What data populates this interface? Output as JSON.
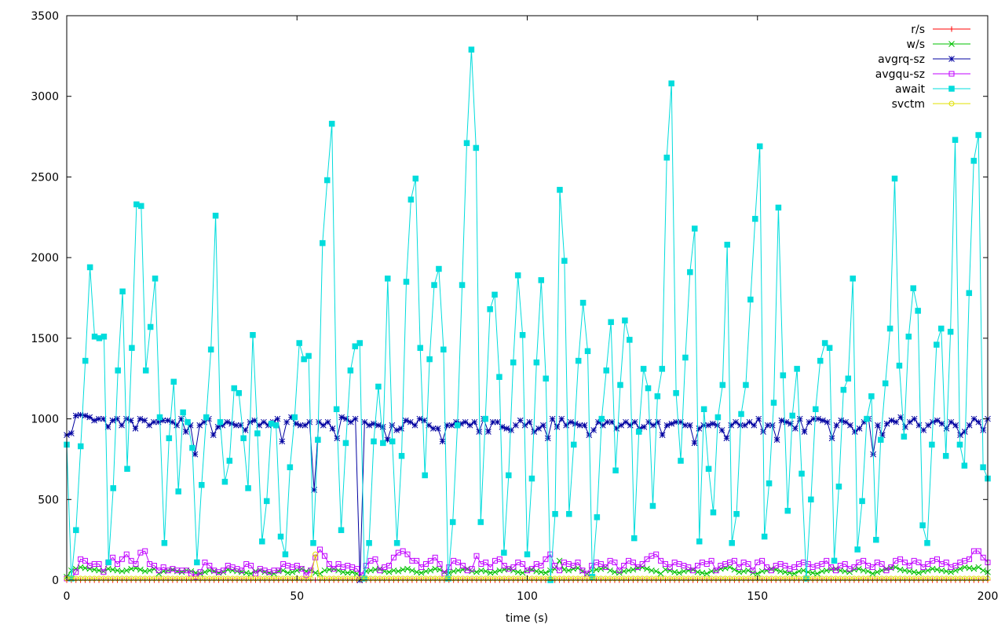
{
  "chart_data": {
    "type": "line",
    "title": "",
    "xlabel": "time (s)",
    "ylabel": "",
    "xlim": [
      0,
      200
    ],
    "ylim": [
      0,
      3500
    ],
    "xticks": [
      0,
      50,
      100,
      150,
      200
    ],
    "yticks": [
      0,
      500,
      1000,
      1500,
      2000,
      2500,
      3000,
      3500
    ],
    "grid": false,
    "legend_position": "top-right",
    "series": [
      {
        "name": "r/s",
        "color": "#ff0000",
        "marker": "plus",
        "values": [
          0,
          0,
          0,
          0,
          0,
          0,
          0,
          0,
          0,
          0,
          0,
          0,
          0,
          0,
          0,
          0,
          0,
          0,
          0,
          0,
          0,
          0,
          0,
          0,
          0,
          0,
          0,
          0,
          0,
          0,
          0,
          0,
          0,
          0,
          0,
          0,
          0,
          0,
          0,
          0,
          0,
          0,
          0,
          0,
          0,
          0,
          0,
          0,
          0,
          0,
          0,
          0,
          0,
          0,
          0,
          0,
          0,
          0,
          0,
          0,
          0,
          0,
          0,
          0,
          0,
          0,
          0,
          0,
          0,
          0,
          0,
          0,
          0,
          0,
          0,
          0,
          0,
          0,
          0,
          0,
          0,
          0,
          0,
          0,
          0,
          0,
          0,
          0,
          0,
          0,
          0,
          0,
          0,
          0,
          0,
          0,
          0,
          0,
          0,
          0,
          0,
          0,
          0,
          0,
          0,
          0,
          0,
          0,
          0,
          0,
          0,
          0,
          0,
          0,
          0,
          0,
          0,
          0,
          0,
          0,
          0,
          0,
          0,
          0,
          0,
          0,
          0,
          0,
          0,
          0,
          0,
          0,
          0,
          0,
          0,
          0,
          0,
          0,
          0,
          0,
          0,
          0,
          0,
          0,
          0,
          0,
          0,
          0,
          0,
          0,
          0,
          0,
          0,
          0,
          0,
          0,
          0,
          0,
          0,
          0,
          0,
          0,
          0,
          0,
          0,
          0,
          0,
          0,
          0,
          0,
          0,
          0,
          0,
          0,
          0,
          0,
          0,
          0,
          0,
          0,
          0,
          0,
          0,
          0,
          0,
          0,
          0,
          0,
          0,
          0,
          0,
          0,
          0,
          0,
          0,
          0,
          0,
          0,
          0,
          0,
          0
        ]
      },
      {
        "name": "w/s",
        "color": "#00c000",
        "marker": "cross",
        "values": [
          20,
          60,
          70,
          80,
          75,
          70,
          65,
          60,
          55,
          70,
          65,
          60,
          55,
          60,
          70,
          75,
          65,
          55,
          60,
          70,
          40,
          55,
          60,
          65,
          55,
          50,
          60,
          55,
          45,
          40,
          50,
          60,
          55,
          45,
          50,
          65,
          60,
          55,
          50,
          45,
          40,
          55,
          60,
          50,
          45,
          40,
          55,
          60,
          45,
          50,
          60,
          70,
          55,
          60,
          45,
          40,
          60,
          65,
          70,
          60,
          50,
          45,
          50,
          40,
          10,
          55,
          60,
          65,
          70,
          55,
          50,
          60,
          55,
          65,
          70,
          60,
          50,
          45,
          55,
          60,
          70,
          65,
          50,
          45,
          55,
          60,
          65,
          70,
          55,
          50,
          60,
          55,
          45,
          50,
          60,
          65,
          70,
          60,
          50,
          45,
          60,
          65,
          55,
          50,
          45,
          60,
          70,
          120,
          65,
          60,
          70,
          75,
          55,
          40,
          60,
          65,
          70,
          80,
          60,
          50,
          45,
          55,
          60,
          65,
          75,
          80,
          70,
          60,
          55,
          40,
          65,
          60,
          50,
          45,
          55,
          60,
          65,
          50,
          45,
          40,
          55,
          60,
          70,
          75,
          80,
          65,
          50,
          55,
          60,
          45,
          40,
          55,
          60,
          70,
          65,
          55,
          50,
          45,
          40,
          55,
          60,
          50,
          45,
          40,
          55,
          60,
          65,
          70,
          60,
          55,
          50,
          65,
          70,
          60,
          55,
          40,
          50,
          60,
          70,
          75,
          80,
          65,
          60,
          55,
          50,
          45,
          55,
          60,
          70,
          65,
          60,
          55,
          50,
          60,
          70,
          80,
          75,
          70,
          80,
          60,
          50
        ]
      },
      {
        "name": "avgrq-sz",
        "color": "#0000a0",
        "marker": "star",
        "values": [
          900,
          910,
          1020,
          1025,
          1020,
          1010,
          990,
          1000,
          1000,
          950,
          990,
          1000,
          960,
          1000,
          990,
          940,
          1000,
          990,
          960,
          980,
          980,
          990,
          990,
          980,
          960,
          1000,
          920,
          960,
          780,
          960,
          980,
          1000,
          900,
          950,
          960,
          980,
          970,
          960,
          960,
          930,
          980,
          990,
          960,
          980,
          960,
          980,
          1000,
          860,
          980,
          1010,
          970,
          960,
          960,
          980,
          560,
          980,
          960,
          980,
          940,
          880,
          1010,
          1000,
          980,
          1000,
          0,
          980,
          960,
          970,
          960,
          950,
          870,
          960,
          930,
          940,
          990,
          980,
          960,
          1000,
          990,
          960,
          940,
          940,
          860,
          960,
          960,
          980,
          970,
          980,
          960,
          980,
          920,
          1000,
          920,
          980,
          980,
          950,
          940,
          930,
          960,
          990,
          960,
          980,
          920,
          940,
          960,
          880,
          1000,
          950,
          1000,
          960,
          980,
          970,
          960,
          960,
          900,
          930,
          980,
          960,
          980,
          980,
          940,
          960,
          980,
          960,
          980,
          940,
          950,
          980,
          960,
          980,
          900,
          960,
          970,
          980,
          980,
          960,
          960,
          850,
          940,
          960,
          960,
          970,
          960,
          930,
          880,
          960,
          980,
          960,
          960,
          980,
          960,
          1000,
          920,
          960,
          960,
          870,
          990,
          980,
          970,
          940,
          1000,
          920,
          980,
          1000,
          1000,
          990,
          980,
          880,
          960,
          990,
          980,
          960,
          920,
          940,
          980,
          1000,
          780,
          960,
          900,
          970,
          990,
          980,
          1010,
          950,
          980,
          1000,
          960,
          930,
          960,
          980,
          990,
          970,
          940,
          980,
          960,
          900,
          920,
          960,
          1000,
          980,
          930,
          1000
        ]
      },
      {
        "name": "avgqu-sz",
        "color": "#c000ff",
        "marker": "square",
        "values": [
          10,
          10,
          50,
          130,
          120,
          90,
          100,
          100,
          50,
          110,
          140,
          100,
          130,
          160,
          120,
          100,
          170,
          180,
          100,
          90,
          60,
          80,
          60,
          70,
          60,
          60,
          60,
          40,
          20,
          50,
          110,
          90,
          60,
          50,
          60,
          90,
          80,
          70,
          60,
          100,
          90,
          40,
          70,
          60,
          50,
          60,
          60,
          100,
          90,
          80,
          90,
          70,
          30,
          60,
          140,
          190,
          150,
          100,
          70,
          100,
          80,
          90,
          80,
          70,
          30,
          90,
          120,
          130,
          60,
          80,
          90,
          140,
          170,
          180,
          160,
          120,
          120,
          80,
          100,
          120,
          140,
          100,
          40,
          80,
          120,
          110,
          90,
          60,
          70,
          150,
          100,
          110,
          80,
          120,
          130,
          90,
          70,
          80,
          110,
          100,
          60,
          70,
          100,
          90,
          130,
          160,
          90,
          60,
          110,
          100,
          90,
          110,
          60,
          40,
          90,
          110,
          100,
          80,
          120,
          110,
          60,
          90,
          120,
          110,
          80,
          100,
          130,
          150,
          160,
          120,
          100,
          80,
          110,
          100,
          90,
          80,
          60,
          90,
          110,
          100,
          120,
          60,
          90,
          100,
          110,
          120,
          80,
          110,
          100,
          60,
          110,
          120,
          80,
          60,
          90,
          100,
          90,
          70,
          80,
          100,
          110,
          100,
          80,
          90,
          100,
          120,
          80,
          60,
          90,
          100,
          70,
          80,
          110,
          120,
          90,
          80,
          110,
          100,
          60,
          80,
          120,
          130,
          110,
          90,
          120,
          110,
          80,
          100,
          120,
          130,
          100,
          110,
          80,
          90,
          110,
          120,
          130,
          180,
          180,
          140,
          110
        ]
      },
      {
        "name": "await",
        "color": "#00dcdc",
        "marker": "filled-square",
        "values": [
          840,
          10,
          310,
          830,
          1360,
          1940,
          1510,
          1500,
          1510,
          110,
          570,
          1300,
          1790,
          690,
          1440,
          2330,
          2320,
          1300,
          1570,
          1870,
          1010,
          230,
          880,
          1230,
          550,
          1040,
          980,
          820,
          110,
          590,
          1010,
          1430,
          2260,
          980,
          610,
          740,
          1190,
          1160,
          880,
          570,
          1520,
          910,
          240,
          490,
          970,
          960,
          270,
          160,
          700,
          1010,
          1470,
          1370,
          1390,
          230,
          870,
          2090,
          2480,
          2830,
          1060,
          310,
          850,
          1300,
          1450,
          1470,
          10,
          230,
          860,
          1200,
          850,
          1870,
          860,
          230,
          770,
          1850,
          2360,
          2490,
          1440,
          650,
          1370,
          1830,
          1930,
          1430,
          10,
          360,
          960,
          1830,
          2710,
          3290,
          2680,
          360,
          1000,
          1680,
          1770,
          1260,
          170,
          650,
          1350,
          1890,
          1520,
          160,
          630,
          1350,
          1860,
          1250,
          0,
          410,
          2420,
          1980,
          410,
          840,
          1360,
          1720,
          1420,
          20,
          390,
          1000,
          1300,
          1600,
          680,
          1210,
          1610,
          1490,
          260,
          920,
          1310,
          1190,
          460,
          1140,
          1310,
          2620,
          3080,
          1160,
          740,
          1380,
          1910,
          2180,
          240,
          1060,
          690,
          420,
          1010,
          1210,
          2080,
          230,
          410,
          1030,
          1210,
          1740,
          2240,
          2690,
          270,
          600,
          1100,
          2310,
          1270,
          430,
          1020,
          1310,
          660,
          10,
          500,
          1060,
          1360,
          1470,
          1440,
          120,
          580,
          1180,
          1250,
          1870,
          190,
          490,
          1000,
          1140,
          250,
          870,
          1220,
          1560,
          2490,
          1330,
          890,
          1510,
          1810,
          1670,
          340,
          230,
          840,
          1460,
          1560,
          770,
          1540,
          2730,
          840,
          710,
          1780,
          2600,
          2760,
          700,
          630
        ]
      },
      {
        "name": "svctm",
        "color": "#e0e000",
        "marker": "circle",
        "values": [
          10,
          10,
          10,
          10,
          10,
          10,
          10,
          10,
          10,
          10,
          10,
          10,
          10,
          10,
          10,
          10,
          10,
          10,
          10,
          10,
          10,
          10,
          10,
          10,
          10,
          10,
          10,
          10,
          10,
          10,
          10,
          10,
          10,
          10,
          10,
          10,
          10,
          10,
          10,
          10,
          10,
          10,
          10,
          10,
          10,
          10,
          10,
          10,
          10,
          10,
          10,
          10,
          10,
          10,
          160,
          10,
          10,
          10,
          10,
          10,
          10,
          10,
          10,
          10,
          10,
          10,
          10,
          10,
          10,
          10,
          10,
          10,
          10,
          10,
          10,
          10,
          10,
          10,
          10,
          10,
          10,
          10,
          10,
          10,
          10,
          10,
          10,
          10,
          10,
          10,
          10,
          10,
          10,
          10,
          10,
          10,
          10,
          10,
          10,
          10,
          10,
          10,
          10,
          10,
          10,
          10,
          10,
          10,
          10,
          10,
          10,
          10,
          10,
          10,
          10,
          10,
          10,
          10,
          10,
          10,
          10,
          10,
          10,
          10,
          10,
          10,
          10,
          10,
          10,
          10,
          10,
          10,
          10,
          10,
          10,
          10,
          10,
          10,
          10,
          10,
          10,
          10,
          10,
          10,
          10,
          10,
          10,
          10,
          10,
          10,
          10,
          10,
          10,
          10,
          10,
          10,
          10,
          10,
          10,
          10,
          10,
          10,
          10,
          10,
          10,
          10,
          10,
          10,
          10,
          10,
          10,
          10,
          10,
          10,
          10,
          10,
          10,
          10,
          10,
          10,
          10,
          10,
          10,
          10,
          10,
          10,
          10,
          10,
          10,
          10,
          10,
          10,
          10,
          10,
          10,
          10,
          10,
          10,
          10,
          10,
          10
        ]
      }
    ]
  }
}
